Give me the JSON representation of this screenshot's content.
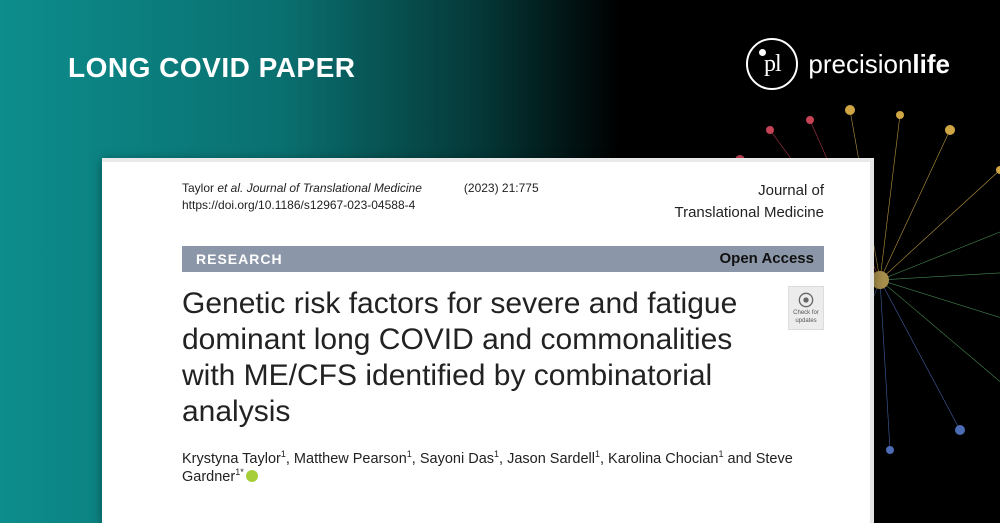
{
  "header": {
    "label": "LONG COVID PAPER",
    "brand_prefix": "precision",
    "brand_bold": "life"
  },
  "paper": {
    "citation_lead": "Taylor ",
    "citation_etal": "et al. Journal of Translational Medicine",
    "citation_year_vol": "(2023) 21:775",
    "doi": "https://doi.org/10.1186/s12967-023-04588-4",
    "journal_line1": "Journal of",
    "journal_line2": "Translational Medicine",
    "section_label": "RESEARCH",
    "open_access": "Open Access",
    "title": "Genetic risk factors for severe and fatigue dominant long COVID and commonalities with ME/CFS identified by combinatorial analysis",
    "check_line1": "Check for",
    "check_line2": "updates",
    "authors_html": "Krystyna Taylor<sup>1</sup>, Matthew Pearson<sup>1</sup>, Sayoni Das<sup>1</sup>, Jason Sardell<sup>1</sup>, Karolina Chocian<sup>1</sup> and Steve Gardner<sup>1*</sup>"
  },
  "colors": {
    "teal_start": "#0d8d8d",
    "teal_end": "#000000",
    "bar": "#8b97a8",
    "text": "#222222",
    "orcid": "#a6ce39"
  }
}
